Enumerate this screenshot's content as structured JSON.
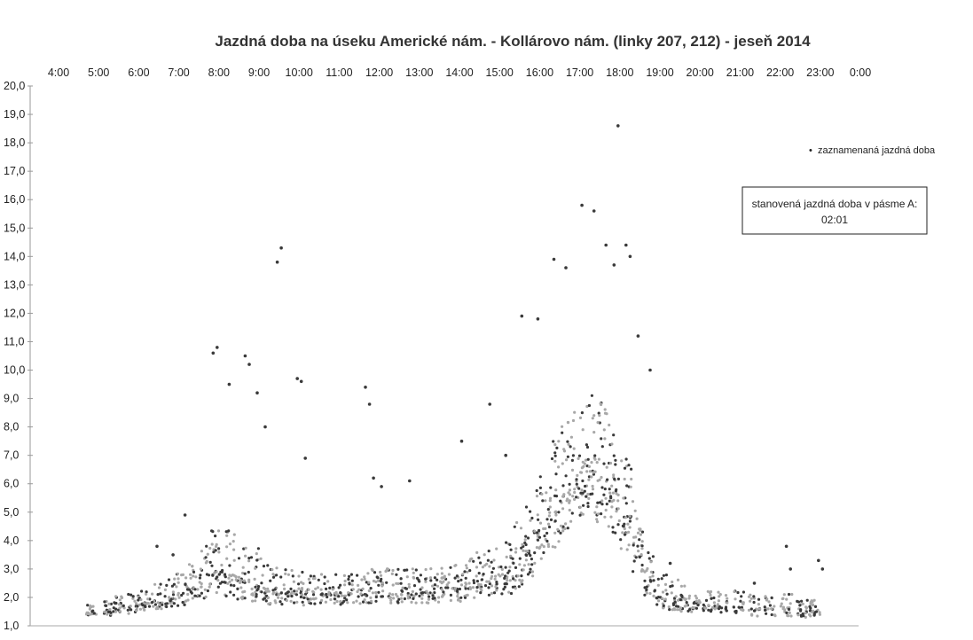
{
  "chart_data": {
    "type": "scatter",
    "title": "Jazdná doba na úseku Americké nám. - Kollárovo nám. (linky 207, 212) - jeseň 2014",
    "xlabel": "",
    "ylabel": "",
    "x_ticks": [
      "4:00",
      "5:00",
      "6:00",
      "7:00",
      "8:00",
      "9:00",
      "10:00",
      "11:00",
      "12:00",
      "13:00",
      "14:00",
      "15:00",
      "16:00",
      "17:00",
      "18:00",
      "19:00",
      "20:00",
      "21:00",
      "22:00",
      "23:00",
      "0:00"
    ],
    "y_ticks": [
      "1,0",
      "2,0",
      "3,0",
      "4,0",
      "5,0",
      "6,0",
      "7,0",
      "8,0",
      "9,0",
      "10,0",
      "11,0",
      "12,0",
      "13,0",
      "14,0",
      "15,0",
      "16,0",
      "17,0",
      "18,0",
      "19,0",
      "20,0"
    ],
    "xlim_hours": [
      4,
      24
    ],
    "ylim": [
      1,
      20
    ],
    "legend_position": "top-right",
    "grid": false,
    "series": [
      {
        "name": "zaznamenaná jazdná doba",
        "color": "#3a3a3a",
        "alt_color": "#a8a8a8",
        "points_hour_median_spread": [
          [
            4.85,
            1.5,
            0.15
          ],
          [
            5.3,
            1.5,
            0.2
          ],
          [
            5.55,
            1.7,
            0.25
          ],
          [
            5.9,
            1.7,
            0.3
          ],
          [
            6.2,
            1.8,
            0.3
          ],
          [
            6.5,
            1.9,
            0.35
          ],
          [
            6.8,
            2.0,
            0.4
          ],
          [
            7.1,
            2.1,
            0.45
          ],
          [
            7.4,
            2.3,
            0.55
          ],
          [
            7.7,
            2.6,
            0.7
          ],
          [
            8.0,
            2.9,
            0.9
          ],
          [
            8.3,
            2.8,
            0.9
          ],
          [
            8.6,
            2.6,
            0.8
          ],
          [
            8.9,
            2.5,
            0.7
          ],
          [
            9.2,
            2.3,
            0.6
          ],
          [
            9.5,
            2.2,
            0.5
          ],
          [
            9.8,
            2.2,
            0.45
          ],
          [
            10.1,
            2.1,
            0.45
          ],
          [
            10.4,
            2.1,
            0.4
          ],
          [
            10.7,
            2.1,
            0.4
          ],
          [
            11.0,
            2.1,
            0.4
          ],
          [
            11.3,
            2.1,
            0.4
          ],
          [
            11.6,
            2.1,
            0.4
          ],
          [
            11.9,
            2.2,
            0.45
          ],
          [
            12.2,
            2.2,
            0.45
          ],
          [
            12.5,
            2.2,
            0.45
          ],
          [
            12.8,
            2.2,
            0.45
          ],
          [
            13.1,
            2.2,
            0.45
          ],
          [
            13.4,
            2.2,
            0.45
          ],
          [
            13.7,
            2.3,
            0.5
          ],
          [
            14.0,
            2.3,
            0.5
          ],
          [
            14.3,
            2.4,
            0.55
          ],
          [
            14.6,
            2.5,
            0.6
          ],
          [
            14.9,
            2.6,
            0.65
          ],
          [
            15.2,
            2.8,
            0.75
          ],
          [
            15.5,
            3.1,
            0.9
          ],
          [
            15.8,
            3.6,
            1.0
          ],
          [
            16.1,
            4.3,
            1.2
          ],
          [
            16.4,
            5.0,
            1.4
          ],
          [
            16.7,
            5.6,
            1.5
          ],
          [
            17.0,
            6.1,
            1.6
          ],
          [
            17.3,
            6.3,
            1.6
          ],
          [
            17.6,
            6.1,
            1.6
          ],
          [
            17.9,
            5.6,
            1.5
          ],
          [
            18.2,
            4.8,
            1.3
          ],
          [
            18.5,
            3.8,
            1.0
          ],
          [
            18.8,
            2.6,
            0.7
          ],
          [
            19.1,
            2.0,
            0.45
          ],
          [
            19.4,
            1.9,
            0.4
          ],
          [
            19.7,
            1.8,
            0.35
          ],
          [
            20.0,
            1.8,
            0.3
          ],
          [
            20.3,
            1.7,
            0.3
          ],
          [
            20.6,
            1.7,
            0.3
          ],
          [
            21.0,
            1.7,
            0.3
          ],
          [
            21.4,
            1.6,
            0.3
          ],
          [
            21.8,
            1.6,
            0.3
          ],
          [
            22.2,
            1.6,
            0.3
          ],
          [
            22.6,
            1.5,
            0.25
          ],
          [
            22.9,
            1.5,
            0.25
          ]
        ],
        "outliers": [
          [
            6.5,
            3.8
          ],
          [
            6.9,
            3.5
          ],
          [
            7.2,
            4.9
          ],
          [
            7.9,
            10.6
          ],
          [
            8.0,
            10.8
          ],
          [
            8.3,
            9.5
          ],
          [
            8.7,
            10.5
          ],
          [
            8.8,
            10.2
          ],
          [
            9.0,
            9.2
          ],
          [
            9.2,
            8.0
          ],
          [
            9.5,
            13.8
          ],
          [
            9.6,
            14.3
          ],
          [
            10.0,
            9.7
          ],
          [
            10.1,
            9.6
          ],
          [
            10.2,
            6.9
          ],
          [
            11.7,
            9.4
          ],
          [
            11.8,
            8.8
          ],
          [
            11.9,
            6.2
          ],
          [
            12.1,
            5.9
          ],
          [
            12.8,
            6.1
          ],
          [
            14.1,
            7.5
          ],
          [
            14.8,
            8.8
          ],
          [
            15.2,
            7.0
          ],
          [
            15.6,
            11.9
          ],
          [
            16.0,
            11.8
          ],
          [
            16.4,
            13.9
          ],
          [
            16.7,
            13.6
          ],
          [
            17.1,
            15.8
          ],
          [
            17.4,
            15.6
          ],
          [
            17.7,
            14.4
          ],
          [
            17.9,
            13.7
          ],
          [
            18.0,
            18.6
          ],
          [
            18.2,
            14.4
          ],
          [
            18.3,
            14.0
          ],
          [
            18.5,
            11.2
          ],
          [
            18.8,
            10.0
          ],
          [
            19.3,
            3.2
          ],
          [
            21.4,
            2.5
          ],
          [
            22.2,
            3.8
          ],
          [
            22.3,
            3.0
          ],
          [
            23.0,
            3.3
          ],
          [
            23.1,
            3.0
          ]
        ]
      }
    ]
  },
  "info_box": {
    "line1": "stanovená jazdná doba v pásme A:",
    "line2": "02:01"
  },
  "legend": {
    "bullet": "•",
    "label": "zaznamenaná jazdná doba"
  }
}
